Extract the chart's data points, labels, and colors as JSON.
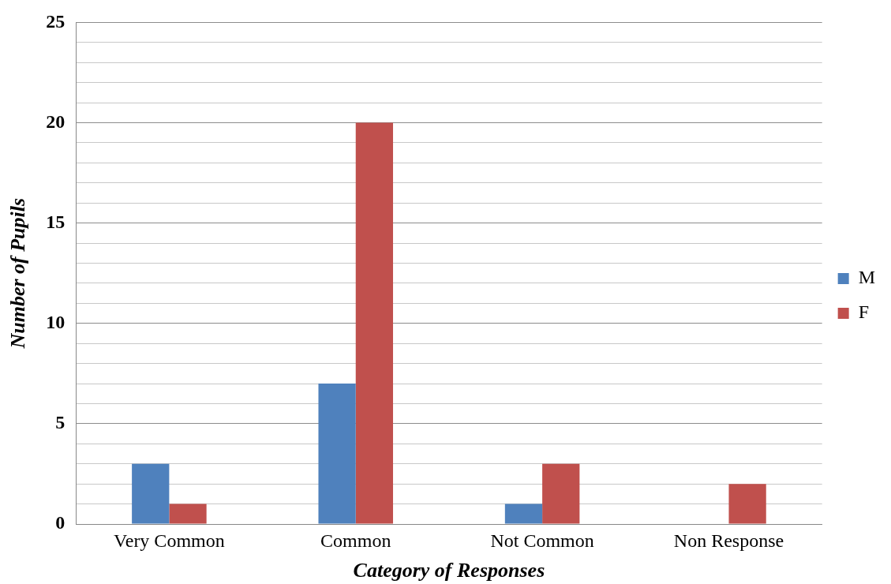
{
  "chart_data": {
    "type": "bar",
    "xlabel": "Category of Responses",
    "ylabel": "Number of Pupils",
    "categories": [
      "Very Common",
      "Common",
      "Not Common",
      "Non Response"
    ],
    "series": [
      {
        "name": "M",
        "color": "#4f81bd",
        "values": [
          3,
          7,
          1,
          0
        ]
      },
      {
        "name": "F",
        "color": "#c0504d",
        "values": [
          1,
          20,
          3,
          2
        ]
      }
    ],
    "ylim": [
      0,
      25
    ],
    "yticks": [
      0,
      {
        "value": 1,
        "label": null
      },
      {
        "value": 2,
        "label": null
      },
      {
        "value": 3,
        "label": null
      },
      {
        "value": 4,
        "label": null
      },
      5,
      {
        "value": 6,
        "label": null
      },
      {
        "value": 7,
        "label": null
      },
      {
        "value": 8,
        "label": null
      },
      {
        "value": 9,
        "label": null
      },
      10,
      {
        "value": 11,
        "label": null
      },
      {
        "value": 12,
        "label": null
      },
      {
        "value": 13,
        "label": null
      },
      {
        "value": 14,
        "label": null
      },
      15,
      {
        "value": 16,
        "label": null
      },
      {
        "value": 17,
        "label": null
      },
      {
        "value": 18,
        "label": null
      },
      {
        "value": 19,
        "label": null
      },
      20,
      {
        "value": 21,
        "label": null
      },
      {
        "value": 22,
        "label": null
      },
      {
        "value": 23,
        "label": null
      },
      {
        "value": 24,
        "label": null
      },
      25
    ],
    "grid": true,
    "legend": "right"
  }
}
